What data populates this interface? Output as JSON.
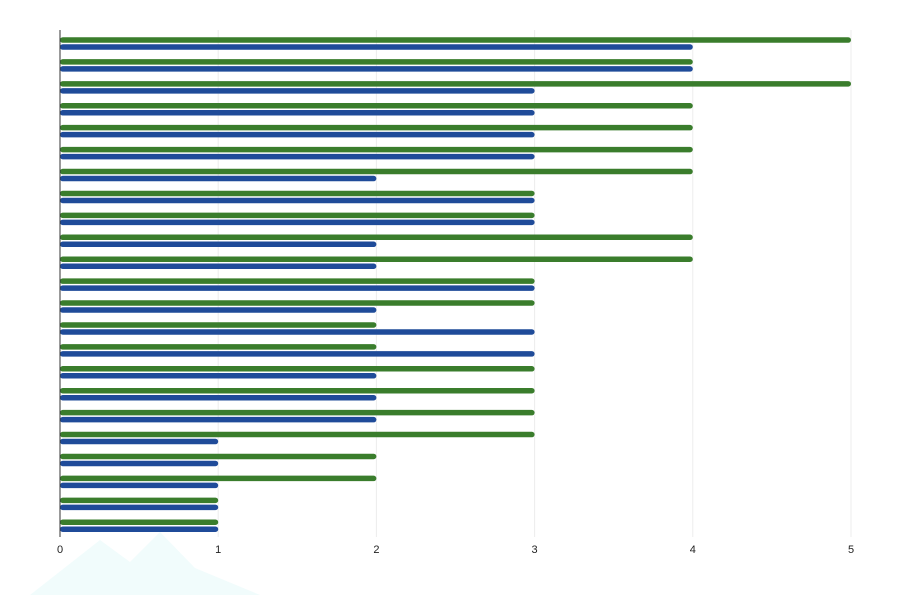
{
  "chart_data": {
    "type": "bar",
    "orientation": "horizontal",
    "xlim": [
      0,
      5
    ],
    "xticks": [
      0,
      1,
      2,
      3,
      4,
      5
    ],
    "grid": true,
    "series": [
      {
        "color": "#3a7d2c",
        "values": [
          5,
          4,
          5,
          4,
          4,
          4,
          4,
          3,
          3,
          4,
          4,
          3,
          3,
          2,
          2,
          3,
          3,
          3,
          3,
          2,
          2,
          1,
          1
        ]
      },
      {
        "color": "#1f4b99",
        "values": [
          4,
          4,
          3,
          3,
          3,
          3,
          2,
          3,
          3,
          2,
          2,
          3,
          2,
          3,
          3,
          2,
          2,
          2,
          1,
          1,
          1,
          1,
          1
        ]
      }
    ]
  }
}
